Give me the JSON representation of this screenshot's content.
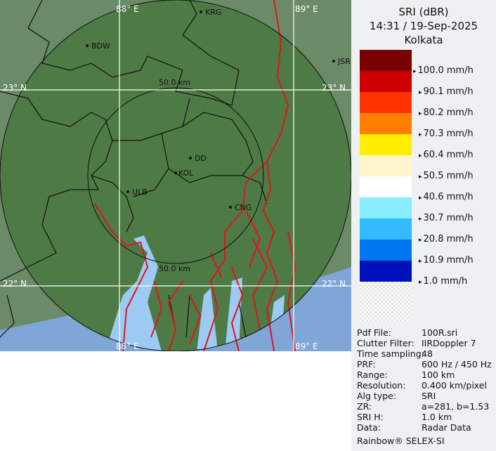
{
  "legend": {
    "title": "SRI (dBR)",
    "datetime": "14:31 / 19-Sep-2025",
    "site": "Kolkata",
    "colors": [
      "#7a0000",
      "#cc0000",
      "#ff3300",
      "#ff7f00",
      "#ffee00",
      "#fff5cc",
      "#ffffff",
      "#88eeff",
      "#33bbff",
      "#0077ee",
      "#0011bb"
    ],
    "labels": [
      "100.0 mm/h",
      "90.1 mm/h",
      "80.2 mm/h",
      "70.3 mm/h",
      "60.4 mm/h",
      "50.5 mm/h",
      "40.6 mm/h",
      "30.7 mm/h",
      "20.8 mm/h",
      "10.9 mm/h",
      "1.0 mm/h"
    ]
  },
  "info": [
    {
      "k": "Pdf File:",
      "v": "100R.sri"
    },
    {
      "k": "Clutter Filter:",
      "v": "IIRDoppler 7"
    },
    {
      "k": "Time sampling:",
      "v": "48"
    },
    {
      "k": "PRF:",
      "v": "600 Hz / 450 Hz"
    },
    {
      "k": "Range:",
      "v": "100 km"
    },
    {
      "k": "Resolution:",
      "v": "0.400 km/pixel"
    },
    {
      "k": "Alg type:",
      "v": "SRI"
    },
    {
      "k": "ZR:",
      "v": "a=281, b=1.53"
    },
    {
      "k": "SRI H:",
      "v": "1.0 km"
    },
    {
      "k": "Data:",
      "v": "Radar Data"
    }
  ],
  "credit": "Rainbow® SELEX-SI",
  "map": {
    "grid": {
      "lon1": "88° E",
      "lon2": "89° E",
      "lat1": "23° N",
      "lat2": "22° N"
    },
    "rings": {
      "inner_top": "50.0 km",
      "inner_bottom": "50.0 km"
    },
    "cities": {
      "krg": "KRG",
      "bdw": "BDW",
      "jsr": "JSR",
      "dd": "DD",
      "kol": "KOL",
      "ulb": "ULB",
      "cng": "CNG"
    }
  }
}
